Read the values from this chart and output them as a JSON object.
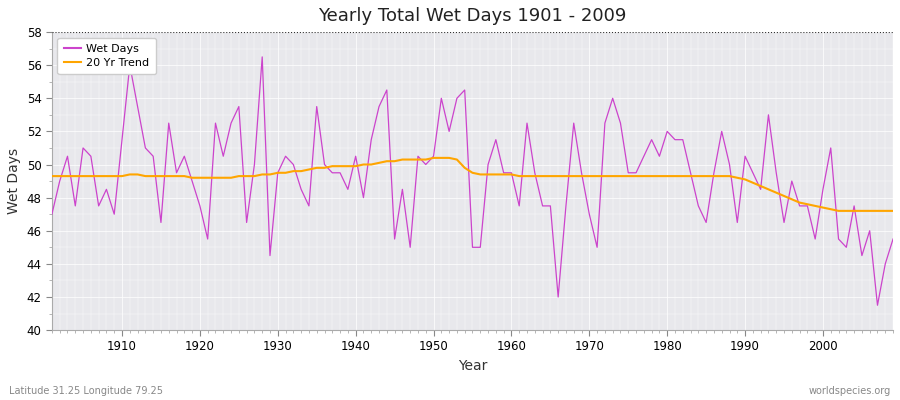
{
  "title": "Yearly Total Wet Days 1901 - 2009",
  "xlabel": "Year",
  "ylabel": "Wet Days",
  "xlim": [
    1901,
    2009
  ],
  "ylim": [
    40,
    58
  ],
  "yticks": [
    40,
    42,
    44,
    46,
    48,
    50,
    52,
    54,
    56,
    58
  ],
  "xticks": [
    1910,
    1920,
    1930,
    1940,
    1950,
    1960,
    1970,
    1980,
    1990,
    2000
  ],
  "wet_days_color": "#CC44CC",
  "trend_color": "#FFA500",
  "background_color": "#E8E8EC",
  "dotted_line_y": 58,
  "legend_labels": [
    "Wet Days",
    "20 Yr Trend"
  ],
  "footer_left": "Latitude 31.25 Longitude 79.25",
  "footer_right": "worldspecies.org",
  "years": [
    1901,
    1902,
    1903,
    1904,
    1905,
    1906,
    1907,
    1908,
    1909,
    1910,
    1911,
    1912,
    1913,
    1914,
    1915,
    1916,
    1917,
    1918,
    1919,
    1920,
    1921,
    1922,
    1923,
    1924,
    1925,
    1926,
    1927,
    1928,
    1929,
    1930,
    1931,
    1932,
    1933,
    1934,
    1935,
    1936,
    1937,
    1938,
    1939,
    1940,
    1941,
    1942,
    1943,
    1944,
    1945,
    1946,
    1947,
    1948,
    1949,
    1950,
    1951,
    1952,
    1953,
    1954,
    1955,
    1956,
    1957,
    1958,
    1959,
    1960,
    1961,
    1962,
    1963,
    1964,
    1965,
    1966,
    1967,
    1968,
    1969,
    1970,
    1971,
    1972,
    1973,
    1974,
    1975,
    1976,
    1977,
    1978,
    1979,
    1980,
    1981,
    1982,
    1983,
    1984,
    1985,
    1986,
    1987,
    1988,
    1989,
    1990,
    1991,
    1992,
    1993,
    1994,
    1995,
    1996,
    1997,
    1998,
    1999,
    2000,
    2001,
    2002,
    2003,
    2004,
    2005,
    2006,
    2007,
    2008,
    2009
  ],
  "wet_days": [
    47.0,
    49.0,
    50.5,
    47.5,
    51.0,
    50.5,
    47.5,
    48.5,
    47.0,
    51.5,
    56.0,
    53.5,
    51.0,
    50.5,
    46.5,
    52.5,
    49.5,
    50.5,
    49.0,
    47.5,
    45.5,
    52.5,
    50.5,
    52.5,
    53.5,
    46.5,
    50.0,
    56.5,
    44.5,
    49.5,
    50.5,
    50.0,
    48.5,
    47.5,
    53.5,
    50.0,
    49.5,
    49.5,
    48.5,
    50.5,
    48.0,
    51.5,
    53.5,
    54.5,
    45.5,
    48.5,
    45.0,
    50.5,
    50.0,
    50.5,
    54.0,
    52.0,
    54.0,
    54.5,
    45.0,
    45.0,
    50.0,
    51.5,
    49.5,
    49.5,
    47.5,
    52.5,
    49.5,
    47.5,
    47.5,
    42.0,
    47.5,
    52.5,
    49.5,
    47.0,
    45.0,
    52.5,
    54.0,
    52.5,
    49.5,
    49.5,
    50.5,
    51.5,
    50.5,
    52.0,
    51.5,
    51.5,
    49.5,
    47.5,
    46.5,
    49.5,
    52.0,
    50.0,
    46.5,
    50.5,
    49.5,
    48.5,
    53.0,
    49.5,
    46.5,
    49.0,
    47.5,
    47.5,
    45.5,
    48.5,
    51.0,
    45.5,
    45.0,
    47.5,
    44.5,
    46.0,
    41.5,
    44.0,
    45.5
  ],
  "trend": [
    49.3,
    49.3,
    49.3,
    49.3,
    49.3,
    49.3,
    49.3,
    49.3,
    49.3,
    49.3,
    49.4,
    49.4,
    49.3,
    49.3,
    49.3,
    49.3,
    49.3,
    49.3,
    49.2,
    49.2,
    49.2,
    49.2,
    49.2,
    49.2,
    49.3,
    49.3,
    49.3,
    49.4,
    49.4,
    49.5,
    49.5,
    49.6,
    49.6,
    49.7,
    49.8,
    49.8,
    49.9,
    49.9,
    49.9,
    49.9,
    50.0,
    50.0,
    50.1,
    50.2,
    50.2,
    50.3,
    50.3,
    50.3,
    50.3,
    50.4,
    50.4,
    50.4,
    50.3,
    49.8,
    49.5,
    49.4,
    49.4,
    49.4,
    49.4,
    49.4,
    49.3,
    49.3,
    49.3,
    49.3,
    49.3,
    49.3,
    49.3,
    49.3,
    49.3,
    49.3,
    49.3,
    49.3,
    49.3,
    49.3,
    49.3,
    49.3,
    49.3,
    49.3,
    49.3,
    49.3,
    49.3,
    49.3,
    49.3,
    49.3,
    49.3,
    49.3,
    49.3,
    49.3,
    49.2,
    49.1,
    48.9,
    48.7,
    48.5,
    48.3,
    48.1,
    47.9,
    47.7,
    47.6,
    47.5,
    47.4,
    47.3,
    47.2,
    47.2,
    47.2,
    47.2,
    47.2,
    47.2,
    47.2,
    47.2
  ]
}
